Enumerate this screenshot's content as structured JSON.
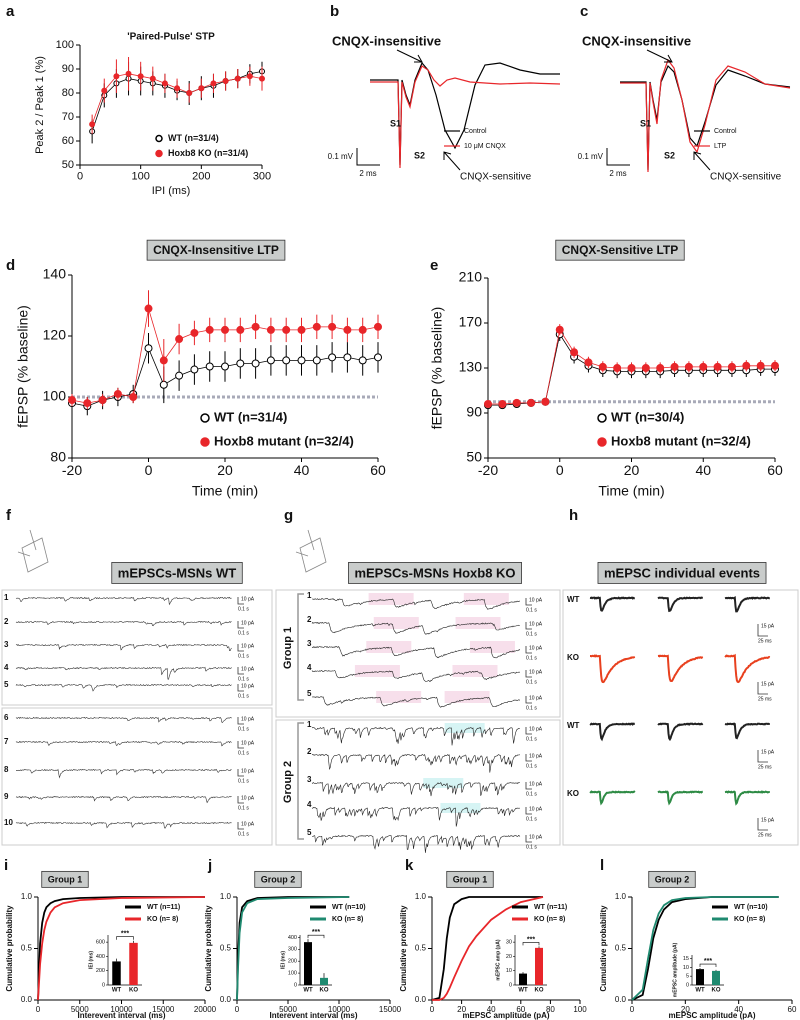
{
  "chart_data": [
    {
      "label": "a",
      "type": "line",
      "title": "'Paired-Pulse' STP",
      "xlabel": "IPI (ms)",
      "ylabel": "Peak 2 / Peak 1 (%)",
      "x": [
        20,
        40,
        60,
        80,
        100,
        120,
        140,
        160,
        180,
        200,
        220,
        240,
        260,
        280,
        300
      ],
      "xlim": [
        0,
        300
      ],
      "xticks": [
        0,
        100,
        200,
        300
      ],
      "ylim": [
        50,
        100
      ],
      "yticks": [
        50,
        60,
        70,
        80,
        90,
        100
      ],
      "legend": "lower right",
      "series": [
        {
          "name": "WT (n=31/4)",
          "color": "#000000",
          "marker": "open",
          "values": [
            64,
            79,
            84,
            86,
            85,
            84,
            83,
            81,
            80,
            82,
            83,
            85,
            86,
            88,
            89
          ],
          "errors": [
            5,
            5,
            6,
            7,
            6,
            5,
            5,
            4,
            5,
            5,
            5,
            4,
            4,
            4,
            4
          ]
        },
        {
          "name": "Hoxb8 KO (n=31/4)",
          "color": "#e8262a",
          "marker": "filled",
          "values": [
            67,
            81,
            87,
            88,
            87,
            86,
            84,
            82,
            80,
            82,
            84,
            85,
            86,
            87,
            86
          ],
          "errors": [
            4,
            5,
            7,
            7,
            6,
            5,
            4,
            4,
            4,
            4,
            4,
            4,
            4,
            4,
            5
          ]
        }
      ]
    },
    {
      "label": "d",
      "type": "line",
      "title": "CNQX-Insensitive LTP",
      "xlabel": "Time (min)",
      "ylabel": "fEPSP (% baseline)",
      "x": [
        -20,
        -16,
        -12,
        -8,
        -4,
        0,
        4,
        8,
        12,
        16,
        20,
        24,
        28,
        32,
        36,
        40,
        44,
        48,
        52,
        56,
        60
      ],
      "xlim": [
        -20,
        60
      ],
      "xticks": [
        -20,
        0,
        20,
        40,
        60
      ],
      "ylim": [
        80,
        140
      ],
      "yticks": [
        80,
        100,
        120,
        140
      ],
      "baseline": 100,
      "legend": "lower right",
      "series": [
        {
          "name": "WT (n=31/4)",
          "color": "#000000",
          "marker": "open",
          "values": [
            98,
            97,
            99,
            100,
            101,
            116,
            104,
            107,
            109,
            110,
            110,
            111,
            111,
            112,
            112,
            112,
            112,
            113,
            113,
            112,
            113
          ],
          "errors": [
            3,
            3,
            3,
            3,
            3,
            5,
            6,
            5,
            5,
            5,
            5,
            5,
            5,
            5,
            5,
            5,
            5,
            5,
            5,
            5,
            5
          ]
        },
        {
          "name": "Hoxb8 mutant (n=32/4)",
          "color": "#e8262a",
          "marker": "filled",
          "values": [
            99,
            98,
            99,
            101,
            100,
            129,
            112,
            119,
            121,
            122,
            122,
            122,
            123,
            122,
            122,
            122,
            123,
            123,
            122,
            122,
            123
          ],
          "errors": [
            2,
            2,
            2,
            2,
            2,
            6,
            7,
            5,
            4,
            4,
            4,
            4,
            4,
            4,
            4,
            4,
            4,
            4,
            4,
            4,
            4
          ]
        }
      ]
    },
    {
      "label": "e",
      "type": "line",
      "title": "CNQX-Sensitive LTP",
      "xlabel": "Time (min)",
      "ylabel": "fEPSP (% baseline)",
      "x": [
        -20,
        -16,
        -12,
        -8,
        -4,
        0,
        4,
        8,
        12,
        16,
        20,
        24,
        28,
        32,
        36,
        40,
        44,
        48,
        52,
        56,
        60
      ],
      "xlim": [
        -20,
        60
      ],
      "xticks": [
        -20,
        0,
        20,
        40,
        60
      ],
      "ylim": [
        50,
        210
      ],
      "yticks": [
        50,
        90,
        130,
        170,
        210
      ],
      "baseline": 100,
      "legend": "lower right",
      "series": [
        {
          "name": "WT (n=30/4)",
          "color": "#000000",
          "marker": "open",
          "values": [
            97,
            97,
            98,
            99,
            100,
            160,
            140,
            132,
            128,
            127,
            127,
            127,
            127,
            128,
            128,
            128,
            128,
            128,
            128,
            129,
            129
          ],
          "errors": [
            3,
            3,
            3,
            3,
            3,
            6,
            6,
            6,
            6,
            6,
            6,
            6,
            6,
            6,
            6,
            6,
            6,
            6,
            6,
            6,
            6
          ]
        },
        {
          "name": "Hoxb8 mutant (n=32/4)",
          "color": "#e8262a",
          "marker": "filled",
          "values": [
            98,
            98,
            99,
            99,
            100,
            164,
            144,
            135,
            131,
            130,
            130,
            130,
            130,
            131,
            131,
            131,
            131,
            131,
            132,
            132,
            132
          ],
          "errors": [
            2,
            2,
            2,
            2,
            2,
            5,
            5,
            5,
            5,
            5,
            5,
            5,
            5,
            5,
            5,
            5,
            5,
            5,
            5,
            5,
            5
          ]
        }
      ]
    },
    {
      "label": "i",
      "type": "line",
      "title": "Group 1",
      "xlabel": "Interevent interval (ms)",
      "ylabel": "Cumulative probability",
      "x": [
        0,
        250,
        500,
        750,
        1000,
        1500,
        2000,
        3000,
        5000,
        10000,
        20000
      ],
      "xlim": [
        0,
        20000
      ],
      "xticks": [
        0,
        5000,
        10000,
        15000,
        20000
      ],
      "ylim": [
        0,
        1
      ],
      "yticks": [
        {
          "value": 0,
          "label": "0.0"
        },
        {
          "value": 0.5,
          "label": "0.5"
        },
        {
          "value": 1,
          "label": "1.0"
        }
      ],
      "legend": "upper right",
      "series": [
        {
          "name": "WT (n=11)",
          "color": "#000000",
          "values": [
            0,
            0.55,
            0.75,
            0.85,
            0.9,
            0.94,
            0.96,
            0.98,
            0.99,
            1,
            1
          ]
        },
        {
          "name": "KO (n= 8)",
          "color": "#e8262a",
          "values": [
            0,
            0.35,
            0.55,
            0.68,
            0.76,
            0.85,
            0.9,
            0.94,
            0.97,
            0.99,
            1
          ]
        }
      ],
      "inset": {
        "type": "bar",
        "ylabel": "IEI (ms)",
        "categories": [
          "WT",
          "KO"
        ],
        "values": [
          330,
          590
        ],
        "errors": [
          40,
          30
        ],
        "colors": [
          "#000000",
          "#e8262a"
        ],
        "ylim": [
          0,
          700
        ],
        "yticks": [
          0,
          200,
          400,
          600
        ],
        "annotation": "***"
      }
    },
    {
      "label": "j",
      "type": "line",
      "title": "Group 2",
      "xlabel": "Interevent interval (ms)",
      "ylabel": "Cumulative probability",
      "x": [
        0,
        100,
        250,
        500,
        1000,
        2000,
        5000,
        11000
      ],
      "xlim": [
        0,
        15000
      ],
      "xticks": [
        0,
        5000,
        10000,
        15000
      ],
      "ylim": [
        0,
        1
      ],
      "yticks": [
        {
          "value": 0,
          "label": "0.0"
        },
        {
          "value": 0.5,
          "label": "0.5"
        },
        {
          "value": 1,
          "label": "1.0"
        }
      ],
      "legend": "upper right",
      "series": [
        {
          "name": "WT (n=10)",
          "color": "#000000",
          "values": [
            0,
            0.4,
            0.75,
            0.9,
            0.96,
            0.99,
            1,
            1
          ]
        },
        {
          "name": "KO (n= 8)",
          "color": "#1f8a70",
          "values": [
            0,
            0.3,
            0.65,
            0.85,
            0.94,
            0.98,
            0.99,
            1
          ]
        }
      ],
      "inset": {
        "type": "bar",
        "ylabel": "IEI (ms)",
        "categories": [
          "WT",
          "KO"
        ],
        "values": [
          360,
          60
        ],
        "errors": [
          25,
          40
        ],
        "colors": [
          "#000000",
          "#1f8a70"
        ],
        "ylim": [
          0,
          420
        ],
        "yticks": [
          0,
          100,
          200,
          300,
          400
        ],
        "annotation": "***"
      }
    },
    {
      "label": "k",
      "type": "line",
      "title": "Group 1",
      "xlabel": "mEPSC amplitude (pA)",
      "ylabel": "Cumulative probability",
      "x": [
        0,
        5,
        8,
        10,
        12,
        15,
        20,
        25,
        30,
        40,
        50,
        60,
        75
      ],
      "xlim": [
        0,
        100
      ],
      "xticks": [
        0,
        20,
        40,
        60,
        80,
        100
      ],
      "ylim": [
        0,
        1
      ],
      "yticks": [
        {
          "value": 0,
          "label": "0.0"
        },
        {
          "value": 0.5,
          "label": "0.5"
        },
        {
          "value": 1,
          "label": "1.0"
        }
      ],
      "legend": "upper right",
      "series": [
        {
          "name": "WT (n=11)",
          "color": "#000000",
          "values": [
            0,
            0.02,
            0.3,
            0.6,
            0.8,
            0.93,
            0.98,
            1,
            1,
            1,
            1,
            1,
            1
          ]
        },
        {
          "name": "KO (n= 8)",
          "color": "#e8262a",
          "values": [
            0,
            0,
            0.02,
            0.06,
            0.12,
            0.22,
            0.38,
            0.52,
            0.62,
            0.78,
            0.88,
            0.95,
            1
          ]
        }
      ],
      "inset": {
        "type": "bar",
        "ylabel": "mEPSC amp (pA)",
        "categories": [
          "WT",
          "KO"
        ],
        "values": [
          8,
          26
        ],
        "errors": [
          1,
          1
        ],
        "colors": [
          "#000000",
          "#e8262a"
        ],
        "ylim": [
          0,
          35
        ],
        "yticks": [
          0,
          10,
          20,
          30
        ],
        "annotation": "***"
      }
    },
    {
      "label": "l",
      "type": "line",
      "title": "Group 2",
      "xlabel": "mEPSC amplitude (pA)",
      "ylabel": "Cumulative probability",
      "x": [
        0,
        4,
        6,
        8,
        10,
        12,
        15,
        20,
        30,
        55
      ],
      "xlim": [
        0,
        60
      ],
      "xticks": [
        0,
        20,
        40,
        60
      ],
      "ylim": [
        0,
        1
      ],
      "yticks": [
        {
          "value": 0,
          "label": "0.0"
        },
        {
          "value": 0.5,
          "label": "0.5"
        },
        {
          "value": 1,
          "label": "1.0"
        }
      ],
      "legend": "upper right",
      "series": [
        {
          "name": "WT (n=10)",
          "color": "#000000",
          "values": [
            0,
            0.05,
            0.3,
            0.6,
            0.78,
            0.88,
            0.95,
            0.98,
            1,
            1
          ]
        },
        {
          "name": "KO (n= 8)",
          "color": "#1f8a70",
          "values": [
            0,
            0.1,
            0.4,
            0.68,
            0.84,
            0.92,
            0.97,
            0.99,
            1,
            1
          ]
        }
      ],
      "inset": {
        "type": "bar",
        "ylabel": "mEPSC amplitude (pA)",
        "categories": [
          "WT",
          "KO"
        ],
        "values": [
          9,
          8
        ],
        "errors": [
          0.6,
          0.6
        ],
        "colors": [
          "#000000",
          "#1f8a70"
        ],
        "ylim": [
          0,
          17
        ],
        "yticks": [
          0,
          5,
          10,
          15
        ],
        "annotation": "***"
      }
    }
  ],
  "traces": {
    "b": {
      "label": "b",
      "top": "CNQX-insensitive",
      "bottom": "CNQX-sensitive",
      "s1": "S1",
      "s2": "S2",
      "legend": [
        "Control",
        "10 μM CNQX"
      ],
      "colors": [
        "#000000",
        "#e8262a"
      ],
      "scale_v": "0.1 mV",
      "scale_t": "2 ms"
    },
    "c": {
      "label": "c",
      "top": "CNQX-insensitive",
      "bottom": "CNQX-sensitive",
      "s1": "S1",
      "s2": "S2",
      "legend": [
        "Control",
        "LTP"
      ],
      "colors": [
        "#000000",
        "#e8262a"
      ],
      "scale_v": "0.1 mV",
      "scale_t": "2 ms"
    },
    "f": {
      "label": "f",
      "title": "mEPSCs-MSNs WT",
      "rows": [
        "1",
        "2",
        "3",
        "4",
        "5",
        "6",
        "7",
        "8",
        "9",
        "10"
      ],
      "scale_amp": "10 pA",
      "scale_time": "0.1 s"
    },
    "g": {
      "label": "g",
      "title": "mEPSCs-MSNs Hoxb8 KO",
      "groups": [
        "Group 1",
        "Group 2"
      ],
      "group_colors": [
        "#c0223a",
        "#2e8b45"
      ],
      "rows": [
        "1",
        "2",
        "3",
        "4",
        "5"
      ],
      "scale_amp": "10 pA",
      "scale_time": "0.1 s"
    },
    "h": {
      "label": "h",
      "title": "mEPSC individual events",
      "rows": [
        "WT",
        "KO",
        "WT",
        "KO"
      ],
      "colors": [
        "#222222",
        "#e8401e",
        "#222222",
        "#2e8b45"
      ],
      "scale_amp": "15 pA",
      "scale_time": "25 ms"
    }
  }
}
